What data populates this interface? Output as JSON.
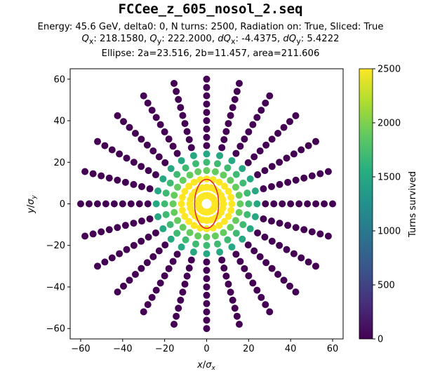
{
  "title": "FCCee_z_605_nosol_2.seq",
  "subtitle_line1": "Energy: 45.6 GeV, delta0: 0, N turns: 2500, Radiation on: True, Sliced: True",
  "subtitle_line2_html": "<i>Q</i><sub>x</sub>: 218.1580, <i>Q</i><sub>y</sub>: 222.2000, <i>dQ</i><sub>x</sub>: -4.4375, <i>dQ</i><sub>y</sub>: 5.4222",
  "subtitle_line3": "Ellipse: 2a=23.516, 2b=11.457, area=211.606",
  "colors": {
    "ellipse": "#e8202a",
    "axis": "#000000"
  },
  "chart_data": {
    "type": "scatter",
    "xlabel": "x/σx",
    "ylabel": "y/σy",
    "xlim": [
      -65,
      65
    ],
    "ylim": [
      -65,
      65
    ],
    "xticks": [
      -60,
      -40,
      -20,
      0,
      20,
      40,
      60
    ],
    "yticks": [
      -60,
      -40,
      -20,
      0,
      20,
      40,
      60
    ],
    "colorbar": {
      "label": "Turns survived",
      "range": [
        0,
        2500
      ],
      "ticks": [
        0,
        500,
        1000,
        1500,
        2000,
        2500
      ],
      "colormap": "viridis"
    },
    "grid": {
      "rays": 24,
      "radii": [
        4,
        8,
        12,
        16,
        20,
        24,
        28,
        32,
        36,
        40,
        44,
        48,
        52,
        56,
        60
      ],
      "survived_turns_by_radius": [
        2500,
        2500,
        2500,
        1900,
        1700,
        1500,
        0,
        0,
        0,
        0,
        0,
        0,
        0,
        0,
        0
      ]
    },
    "ellipse": {
      "center": [
        0,
        0
      ],
      "a": 11.758,
      "b": 5.7285,
      "major_axis": "y"
    }
  }
}
